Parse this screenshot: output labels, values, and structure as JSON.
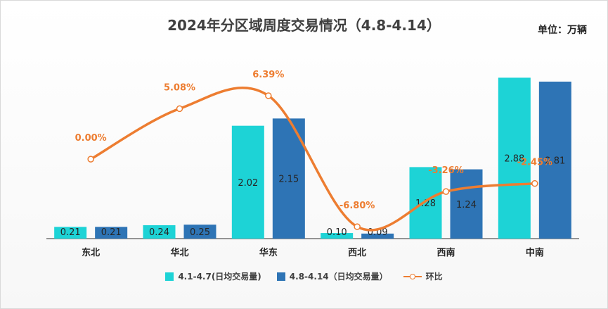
{
  "chart_data": {
    "type": "bar",
    "title": "2024年分区域周度交易情况（4.8-4.14）",
    "unit": "单位：万辆",
    "categories": [
      "东北",
      "华北",
      "华东",
      "西北",
      "西南",
      "中南"
    ],
    "series": [
      {
        "name": "4.1-4.7(日均交易量)",
        "type": "bar",
        "color": "#1dd3d6",
        "values": [
          0.21,
          0.24,
          2.02,
          0.1,
          1.28,
          2.88
        ]
      },
      {
        "name": "4.8-4.14（日均交易量）",
        "type": "bar",
        "color": "#2e74b5",
        "values": [
          0.21,
          0.25,
          2.15,
          0.09,
          1.24,
          2.81
        ]
      },
      {
        "name": "环比",
        "type": "line",
        "color": "#ed7d31",
        "values": [
          0.0,
          5.08,
          6.39,
          -6.8,
          -3.26,
          -2.45
        ],
        "labels": [
          "0.00%",
          "5.08%",
          "6.39%",
          "-6.80%",
          "-3.26%",
          "-2.45%"
        ]
      }
    ],
    "bar_ylim": [
      0,
      3.2
    ],
    "line_ylim": [
      -8,
      10
    ],
    "grid": false,
    "legend_position": "bottom"
  }
}
